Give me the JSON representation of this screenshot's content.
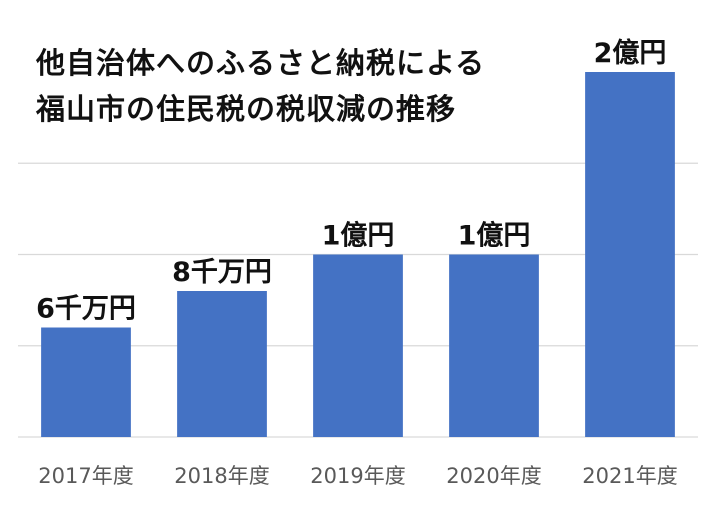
{
  "chart_data": {
    "type": "bar",
    "title_lines": [
      "他自治体へのふるさと納税による",
      "福山市の住民税の税収減の推移"
    ],
    "categories": [
      "2017年度",
      "2018年度",
      "2019年度",
      "2020年度",
      "2021年度"
    ],
    "values": [
      60000000,
      80000000,
      100000000,
      100000000,
      200000000
    ],
    "data_labels": [
      "6千万円",
      "8千万円",
      "1億円",
      "1億円",
      "2億円"
    ],
    "xlabel": "",
    "ylabel": "",
    "ylim": [
      0,
      200000000
    ],
    "y_axis_labels_shown": false,
    "grid": true,
    "bar_color": "#4472C4",
    "gridline_color": "#D9D9D9"
  }
}
